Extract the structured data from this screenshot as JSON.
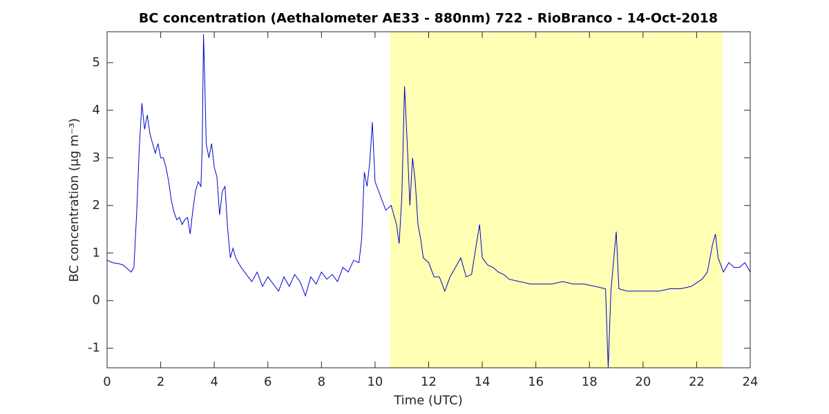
{
  "chart_data": {
    "type": "line",
    "title": "BC concentration (Aethalometer AE33 - 880nm) 722 - RioBranco - 14-Oct-2018",
    "xlabel": "Time (UTC)",
    "ylabel": "BC concentration (μg m⁻³)",
    "xlim": [
      0,
      24
    ],
    "xticks": [
      0,
      2,
      4,
      6,
      8,
      10,
      12,
      14,
      16,
      18,
      20,
      22,
      24
    ],
    "ylim": [
      -1.41,
      5.65
    ],
    "yticks": [
      -1,
      0,
      1,
      2,
      3,
      4,
      5
    ],
    "shaded_region": [
      10.57,
      22.96
    ],
    "shaded_color": "#ffffb3",
    "x": [
      0,
      0.2,
      0.4,
      0.6,
      0.8,
      0.9,
      1.0,
      1.1,
      1.2,
      1.3,
      1.4,
      1.5,
      1.6,
      1.7,
      1.8,
      1.9,
      2.0,
      2.1,
      2.2,
      2.3,
      2.4,
      2.5,
      2.6,
      2.7,
      2.8,
      2.9,
      3.0,
      3.1,
      3.2,
      3.3,
      3.4,
      3.5,
      3.55,
      3.6,
      3.65,
      3.7,
      3.8,
      3.9,
      4.0,
      4.1,
      4.2,
      4.3,
      4.4,
      4.5,
      4.6,
      4.7,
      4.8,
      5.0,
      5.2,
      5.4,
      5.6,
      5.8,
      6.0,
      6.2,
      6.4,
      6.6,
      6.8,
      7.0,
      7.2,
      7.4,
      7.6,
      7.8,
      8.0,
      8.2,
      8.4,
      8.6,
      8.8,
      9.0,
      9.2,
      9.4,
      9.5,
      9.6,
      9.7,
      9.8,
      9.9,
      10.0,
      10.2,
      10.4,
      10.6,
      10.8,
      10.9,
      11.0,
      11.1,
      11.2,
      11.3,
      11.4,
      11.5,
      11.6,
      11.7,
      11.8,
      12.0,
      12.2,
      12.4,
      12.6,
      12.8,
      13.0,
      13.2,
      13.4,
      13.6,
      13.8,
      13.9,
      14.0,
      14.2,
      14.4,
      14.6,
      14.8,
      15.0,
      15.4,
      15.8,
      16.2,
      16.6,
      17.0,
      17.4,
      17.8,
      18.2,
      18.6,
      18.7,
      18.8,
      19.0,
      19.1,
      19.4,
      19.8,
      20.2,
      20.6,
      21.0,
      21.4,
      21.8,
      22.2,
      22.4,
      22.6,
      22.7,
      22.8,
      23.0,
      23.2,
      23.4,
      23.6,
      23.8,
      24.0
    ],
    "series": [
      {
        "name": "BC",
        "color": "#0000cc",
        "values": [
          0.85,
          0.8,
          0.78,
          0.75,
          0.65,
          0.6,
          0.7,
          1.8,
          3.2,
          4.15,
          3.6,
          3.9,
          3.5,
          3.3,
          3.1,
          3.3,
          3.0,
          3.0,
          2.8,
          2.5,
          2.1,
          1.85,
          1.7,
          1.75,
          1.6,
          1.7,
          1.75,
          1.4,
          1.9,
          2.3,
          2.5,
          2.4,
          3.2,
          5.6,
          4.5,
          3.3,
          3.0,
          3.3,
          2.8,
          2.6,
          1.8,
          2.3,
          2.4,
          1.5,
          0.9,
          1.1,
          0.9,
          0.7,
          0.55,
          0.4,
          0.6,
          0.3,
          0.5,
          0.35,
          0.2,
          0.5,
          0.3,
          0.55,
          0.4,
          0.1,
          0.5,
          0.35,
          0.6,
          0.45,
          0.55,
          0.4,
          0.7,
          0.6,
          0.85,
          0.8,
          1.3,
          2.7,
          2.4,
          2.9,
          3.75,
          2.5,
          2.2,
          1.9,
          2.0,
          1.6,
          1.2,
          2.2,
          4.5,
          3.3,
          2.0,
          3.0,
          2.5,
          1.6,
          1.3,
          0.9,
          0.8,
          0.5,
          0.5,
          0.2,
          0.5,
          0.7,
          0.9,
          0.5,
          0.55,
          1.25,
          1.6,
          0.9,
          0.75,
          0.7,
          0.6,
          0.55,
          0.45,
          0.4,
          0.35,
          0.35,
          0.35,
          0.4,
          0.35,
          0.35,
          0.3,
          0.25,
          -1.4,
          0.2,
          1.45,
          0.25,
          0.2,
          0.2,
          0.2,
          0.2,
          0.25,
          0.25,
          0.3,
          0.45,
          0.6,
          1.2,
          1.4,
          0.9,
          0.6,
          0.8,
          0.7,
          0.7,
          0.8,
          0.6
        ]
      }
    ]
  }
}
